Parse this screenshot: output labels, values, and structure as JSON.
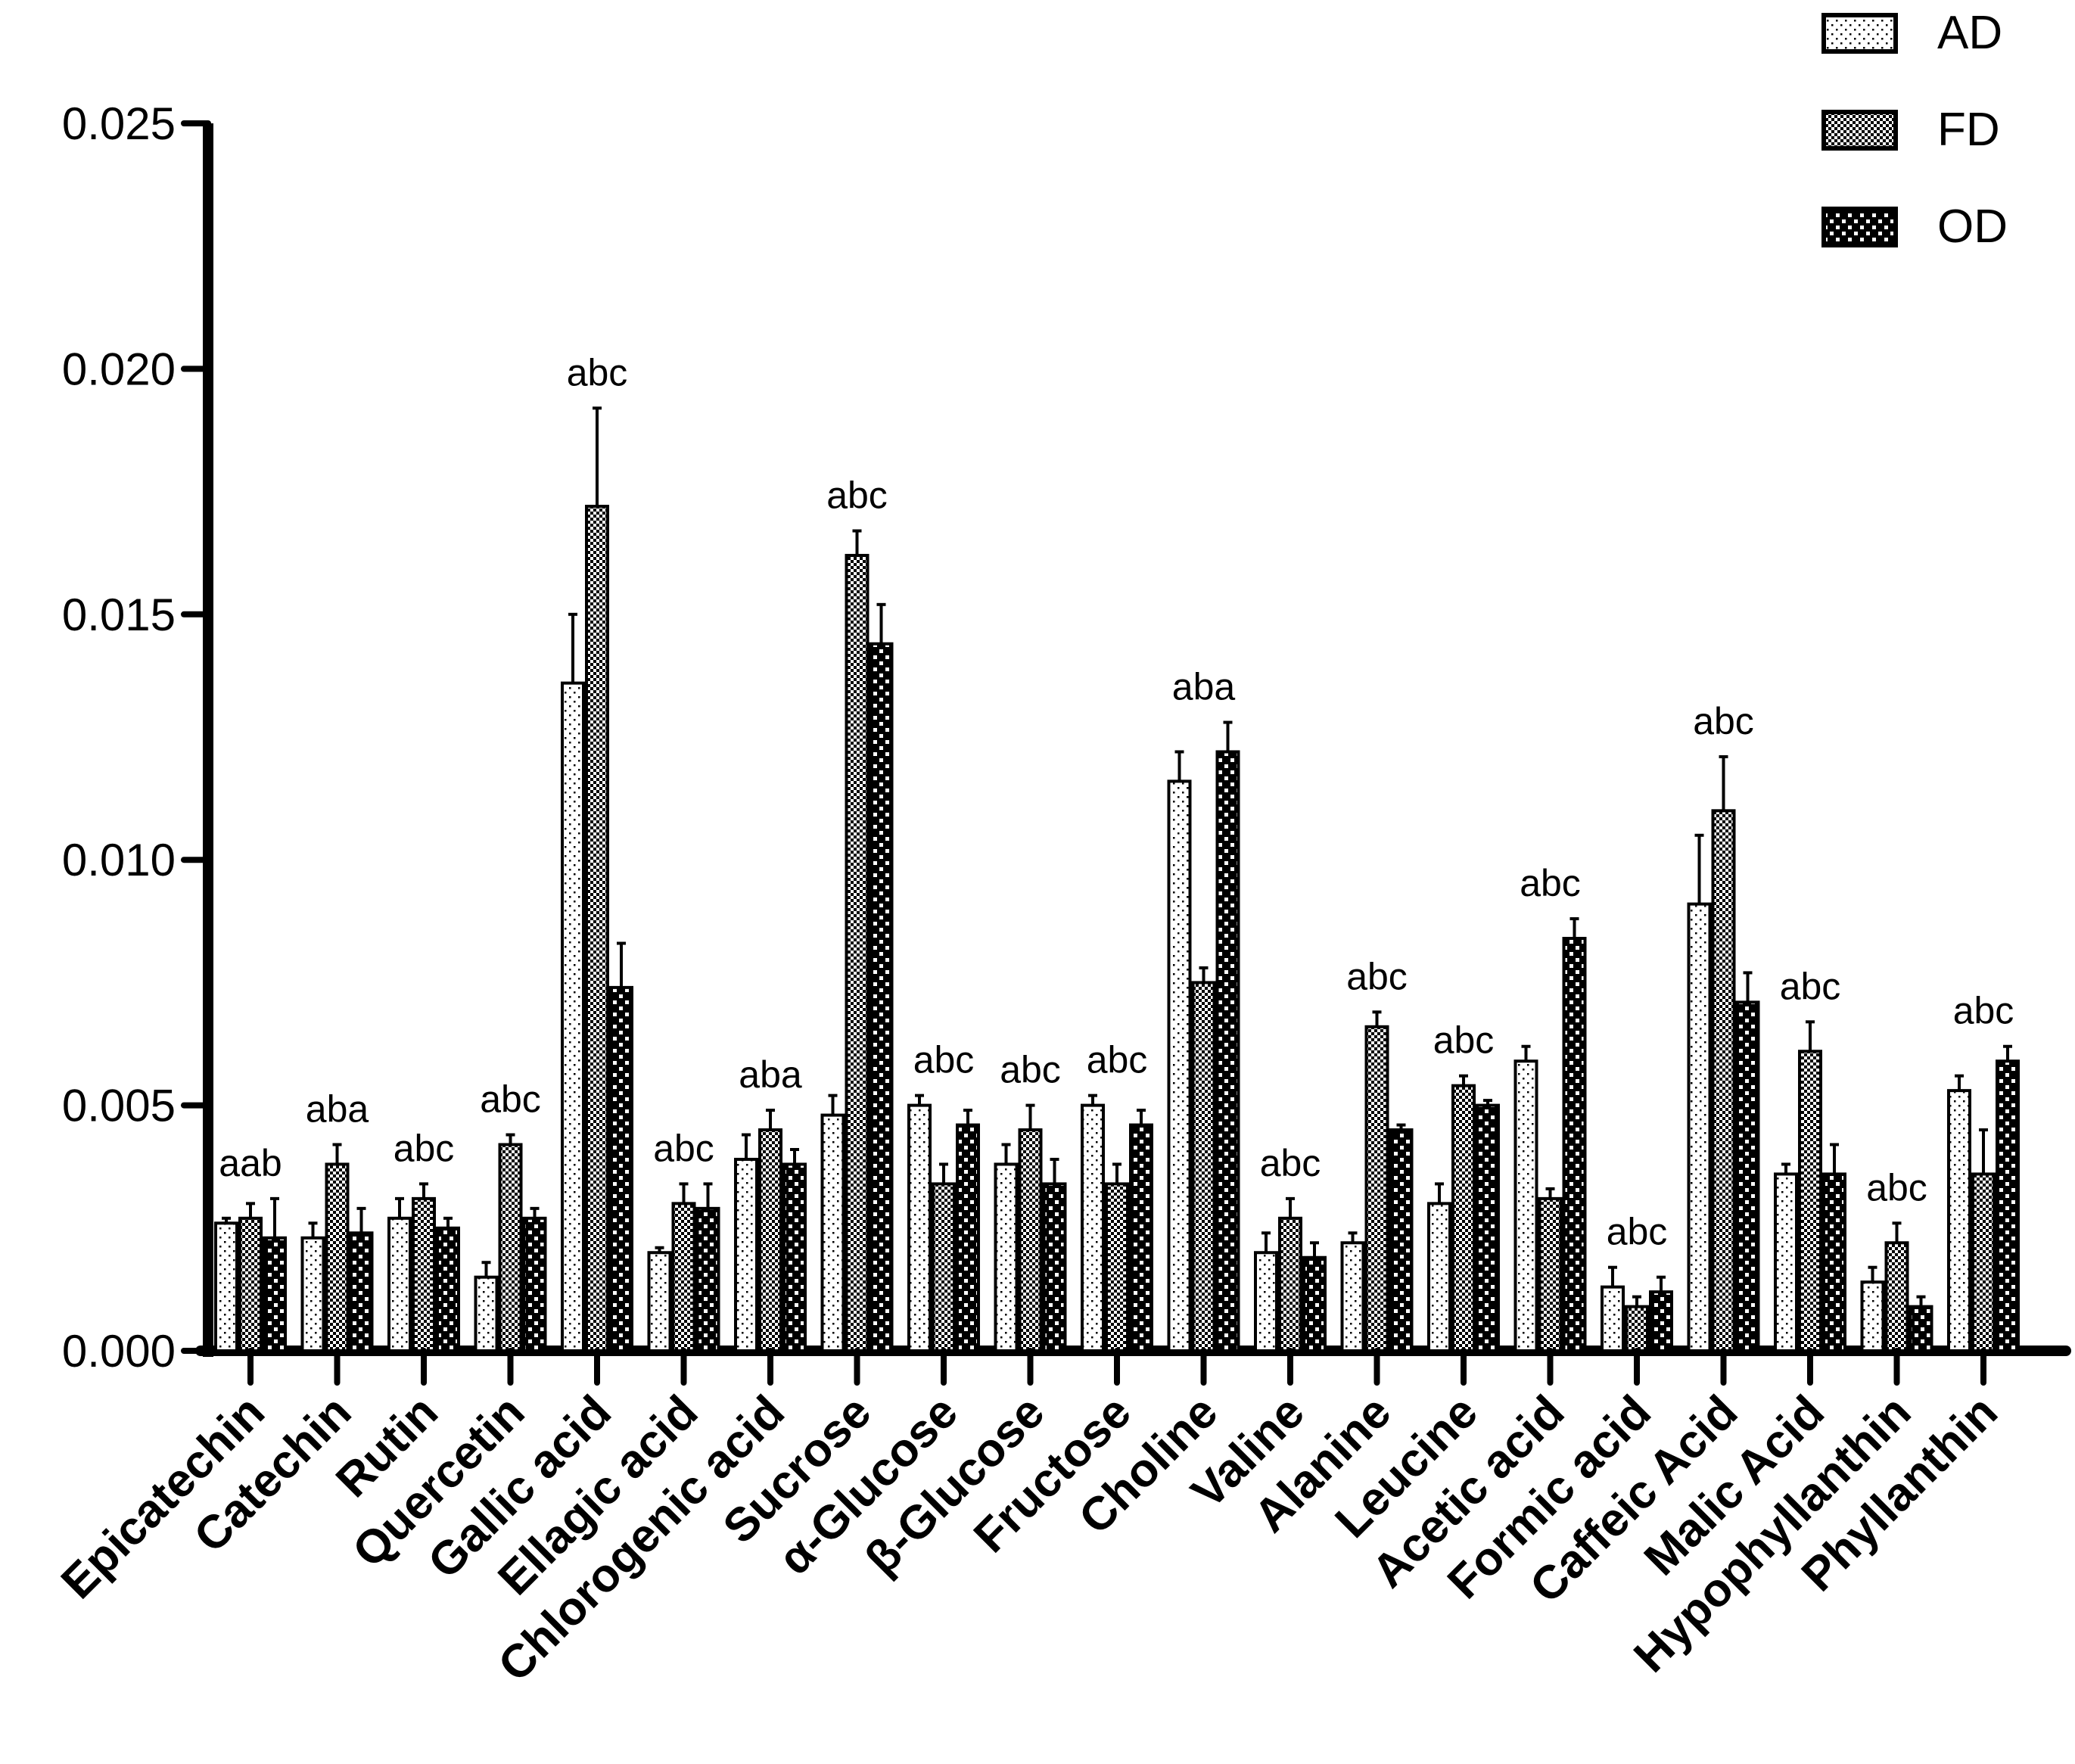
{
  "chart_data": {
    "type": "bar",
    "title": "",
    "xlabel": "",
    "ylabel": "",
    "ylim": [
      0,
      0.025
    ],
    "yticks": [
      "0.000",
      "0.005",
      "0.010",
      "0.015",
      "0.020",
      "0.025"
    ],
    "ytick_values": [
      0,
      0.005,
      0.01,
      0.015,
      0.02,
      0.025
    ],
    "legend_position": "top-right",
    "categories": [
      "Epicatechin",
      "Catechin",
      "Rutin",
      "Quercetin",
      "Gallic acid",
      "Ellagic acid",
      "Chlorogenic acid",
      "Sucrose",
      "α-Glucose",
      "β-Glucose",
      "Fructose",
      "Choline",
      "Valine",
      "Alanine",
      "Leucine",
      "Acetic acid",
      "Formic acid",
      "Caffeic Acid",
      "Malic Acid",
      "Hypophyllanthin",
      "Phyllanthin"
    ],
    "significance": [
      "aab",
      "aba",
      "abc",
      "abc",
      "abc",
      "abc",
      "aba",
      "abc",
      "abc",
      "abc",
      "abc",
      "aba",
      "abc",
      "abc",
      "abc",
      "abc",
      "abc",
      "abc",
      "abc",
      "abc",
      "abc"
    ],
    "series": [
      {
        "name": "AD",
        "pattern": "fine-dots",
        "values": [
          0.0026,
          0.0023,
          0.0027,
          0.0015,
          0.0136,
          0.002,
          0.0039,
          0.0048,
          0.005,
          0.0038,
          0.005,
          0.0116,
          0.002,
          0.0022,
          0.003,
          0.0059,
          0.0013,
          0.0091,
          0.0036,
          0.0014,
          0.0053
        ],
        "errors": [
          0.0001,
          0.0003,
          0.0004,
          0.0003,
          0.0014,
          0.0001,
          0.0005,
          0.0004,
          0.0002,
          0.0004,
          0.0002,
          0.0006,
          0.0004,
          0.0002,
          0.0004,
          0.0003,
          0.0004,
          0.0014,
          0.0002,
          0.0003,
          0.0003
        ]
      },
      {
        "name": "FD",
        "pattern": "dense-check",
        "values": [
          0.0027,
          0.0038,
          0.0031,
          0.0042,
          0.0172,
          0.003,
          0.0045,
          0.0162,
          0.0034,
          0.0045,
          0.0034,
          0.0075,
          0.0027,
          0.0066,
          0.0054,
          0.0031,
          0.0009,
          0.011,
          0.0061,
          0.0022,
          0.0036
        ],
        "errors": [
          0.0003,
          0.0004,
          0.0003,
          0.0002,
          0.002,
          0.0004,
          0.0004,
          0.0005,
          0.0004,
          0.0005,
          0.0004,
          0.0003,
          0.0004,
          0.0003,
          0.0002,
          0.0002,
          0.0002,
          0.0011,
          0.0006,
          0.0004,
          0.0009
        ]
      },
      {
        "name": "OD",
        "pattern": "checker",
        "values": [
          0.0023,
          0.0024,
          0.0025,
          0.0027,
          0.0074,
          0.0029,
          0.0038,
          0.0144,
          0.0046,
          0.0034,
          0.0046,
          0.0122,
          0.0019,
          0.0045,
          0.005,
          0.0084,
          0.0012,
          0.0071,
          0.0036,
          0.0009,
          0.0059
        ],
        "errors": [
          0.0008,
          0.0005,
          0.0002,
          0.0002,
          0.0009,
          0.0005,
          0.0003,
          0.0008,
          0.0003,
          0.0005,
          0.0003,
          0.0006,
          0.0003,
          0.0001,
          0.0001,
          0.0004,
          0.0003,
          0.0006,
          0.0006,
          0.0002,
          0.0003
        ]
      }
    ]
  },
  "colors": {
    "foreground": "#000000",
    "background": "#ffffff"
  }
}
